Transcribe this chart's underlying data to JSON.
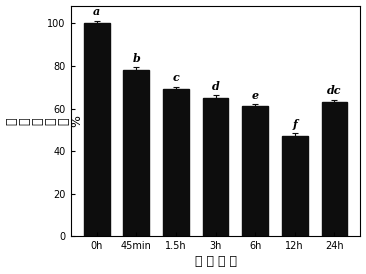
{
  "categories": [
    "0h",
    "45min",
    "1.5h",
    "3h",
    "6h",
    "12h",
    "24h"
  ],
  "values": [
    100,
    78,
    69,
    65,
    61,
    47,
    63
  ],
  "errors": [
    1.2,
    1.5,
    1.3,
    1.2,
    1.0,
    1.5,
    1.2
  ],
  "letters": [
    "a",
    "b",
    "c",
    "d",
    "e",
    "f",
    "dc"
  ],
  "bar_color": "#0d0d0d",
  "ylabel_chars": [
    "细",
    "胞",
    "存",
    "活",
    "率",
    "%"
  ],
  "xlabel": "处 理 时 间",
  "ylim": [
    0,
    108
  ],
  "yticks": [
    0,
    20,
    40,
    60,
    80,
    100
  ],
  "tick_fontsize": 7,
  "label_fontsize": 9,
  "letter_fontsize": 8,
  "bar_width": 0.65,
  "background_color": "#ffffff",
  "figsize": [
    3.66,
    2.74
  ],
  "dpi": 100
}
